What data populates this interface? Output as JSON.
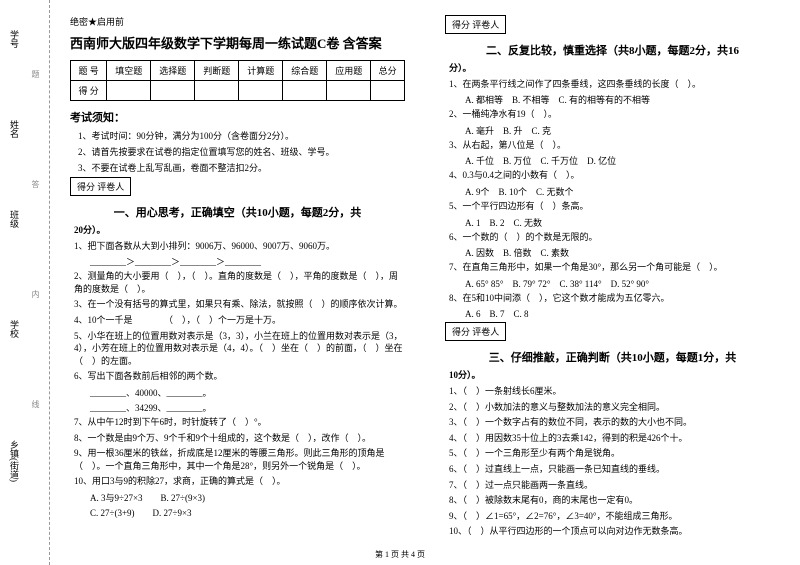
{
  "margin": {
    "labels": [
      "学号",
      "姓名",
      "班级",
      "学校",
      "乡镇(街道)"
    ],
    "dashes": [
      "题",
      "答",
      "内",
      "线",
      "封"
    ]
  },
  "secret": "绝密★启用前",
  "title": "西南师大版四年级数学下学期每周一练试题C卷 含答案",
  "scoreTable": {
    "headers": [
      "题 号",
      "填空题",
      "选择题",
      "判断题",
      "计算题",
      "综合题",
      "应用题",
      "总分"
    ],
    "row2": "得 分"
  },
  "notice": {
    "title": "考试须知：",
    "items": [
      "1、考试时间：90分钟，满分为100分（含卷面分2分）。",
      "2、请首先按要求在试卷的指定位置填写您的姓名、班级、学号。",
      "3、不要在试卷上乱写乱画，卷面不整洁扣2分。"
    ]
  },
  "gradeLabel": "得分  评卷人",
  "section1": {
    "title": "一、用心思考，正确填空（共10小题，每题2分，共",
    "title2": "20分）。",
    "items": [
      "1、把下面各数从大到小排列：9006万、96000、9007万、9060万。",
      "2、测量角的大小要用（　），（　）。直角的度数是（　），平角的度数是（　），周角的度数是（　）。",
      "3、在一个没有括号的算式里，如果只有乘、除法，就按照（　）的顺序依次计算。",
      "4、10个一千是　　　　（　），（　）个一万是十万。",
      "5、小华在班上的位置用数对表示是（3，3），小兰在班上的位置用数对表示是（3，4），小芳在班上的位置用数对表示是（4，4）。（　）坐在（　）的前面，（　）坐在（　）的左面。",
      "6、写出下面各数前后相邻的两个数。",
      "7、从中午12时到下午6时，时针旋转了（　）°。",
      "8、一个数是由9个万、9个千和9个十组成的，这个数是（　），改作（　）。",
      "9、用一根36厘米的铁丝，折成底是12厘米的等腰三角形。则此三角形的顶角是（　）。一个直角三角形中，其中一个角是28°，则另外一个锐角是（　）。",
      "10、用口3与9的积除27，求商，正确的算式是（　）。"
    ],
    "sub6": [
      "________、40000、________。",
      "________、34299、________。"
    ],
    "sub10": [
      "A. 3与9÷27×3",
      "B. 27÷(9×3)",
      "C. 27÷(3+9)",
      "D. 27÷9×3"
    ]
  },
  "section2": {
    "title": "二、反复比较，慎重选择（共8小题，每题2分，共16",
    "title2": "分）。",
    "items": [
      "1、在两条平行线之间作了四条垂线，这四条垂线的长度（　）。",
      "2、一桶纯净水有19（　）。",
      "3、从右起，第八位是（　）。",
      "4、0.3与0.4之间的小数有（　）。",
      "5、一个平行四边形有（　）条高。",
      "6、一个数的（　）的个数是无限的。",
      "7、在直角三角形中，如果一个角是30°，那么另一个角可能是（　）。",
      "8、在5和10中间添（　），它这个数才能成为五亿零六。"
    ],
    "opts": [
      [
        "A. 都相等",
        "B. 不相等",
        "C. 有的相等有的不相等"
      ],
      [
        "A. 毫升",
        "B. 升",
        "C. 克"
      ],
      [
        "A. 千位",
        "B. 万位",
        "C. 千万位",
        "D. 亿位"
      ],
      [
        "A. 9个",
        "B. 10个",
        "C. 无数个"
      ],
      [
        "A. 1",
        "B. 2",
        "C. 无数"
      ],
      [
        "A. 因数",
        "B. 倍数",
        "C. 素数"
      ],
      [
        "A. 65° 85°",
        "B. 79° 72°",
        "C. 38° 114°",
        "D. 52° 90°"
      ],
      [
        "A. 6",
        "B. 7",
        "C. 8"
      ]
    ]
  },
  "section3": {
    "title": "三、仔细推敲，正确判断（共10小题，每题1分，共",
    "title2": "10分）。",
    "items": [
      "1、（　）一条射线长6厘米。",
      "2、（　）小数加法的意义与整数加法的意义完全相同。",
      "3、（　）一个数字占有的数位不同，表示的数的大小也不同。",
      "4、（　）用因数35十位上的3去乘142，得到的积是426个十。",
      "5、（　）一个三角形至少有两个角是锐角。",
      "6、（　）过直线上一点，只能画一条已知直线的垂线。",
      "7、（　）过一点只能画两一条直线。",
      "8、（　）被除数末尾有0，商的末尾也一定有0。",
      "9、（　）∠1=65°，∠2=76°，∠3=40°，不能组成三角形。",
      "10、（　）从平行四边形的一个顶点可以向对边作无数条高。"
    ]
  },
  "footer": "第 1 页 共 4 页"
}
